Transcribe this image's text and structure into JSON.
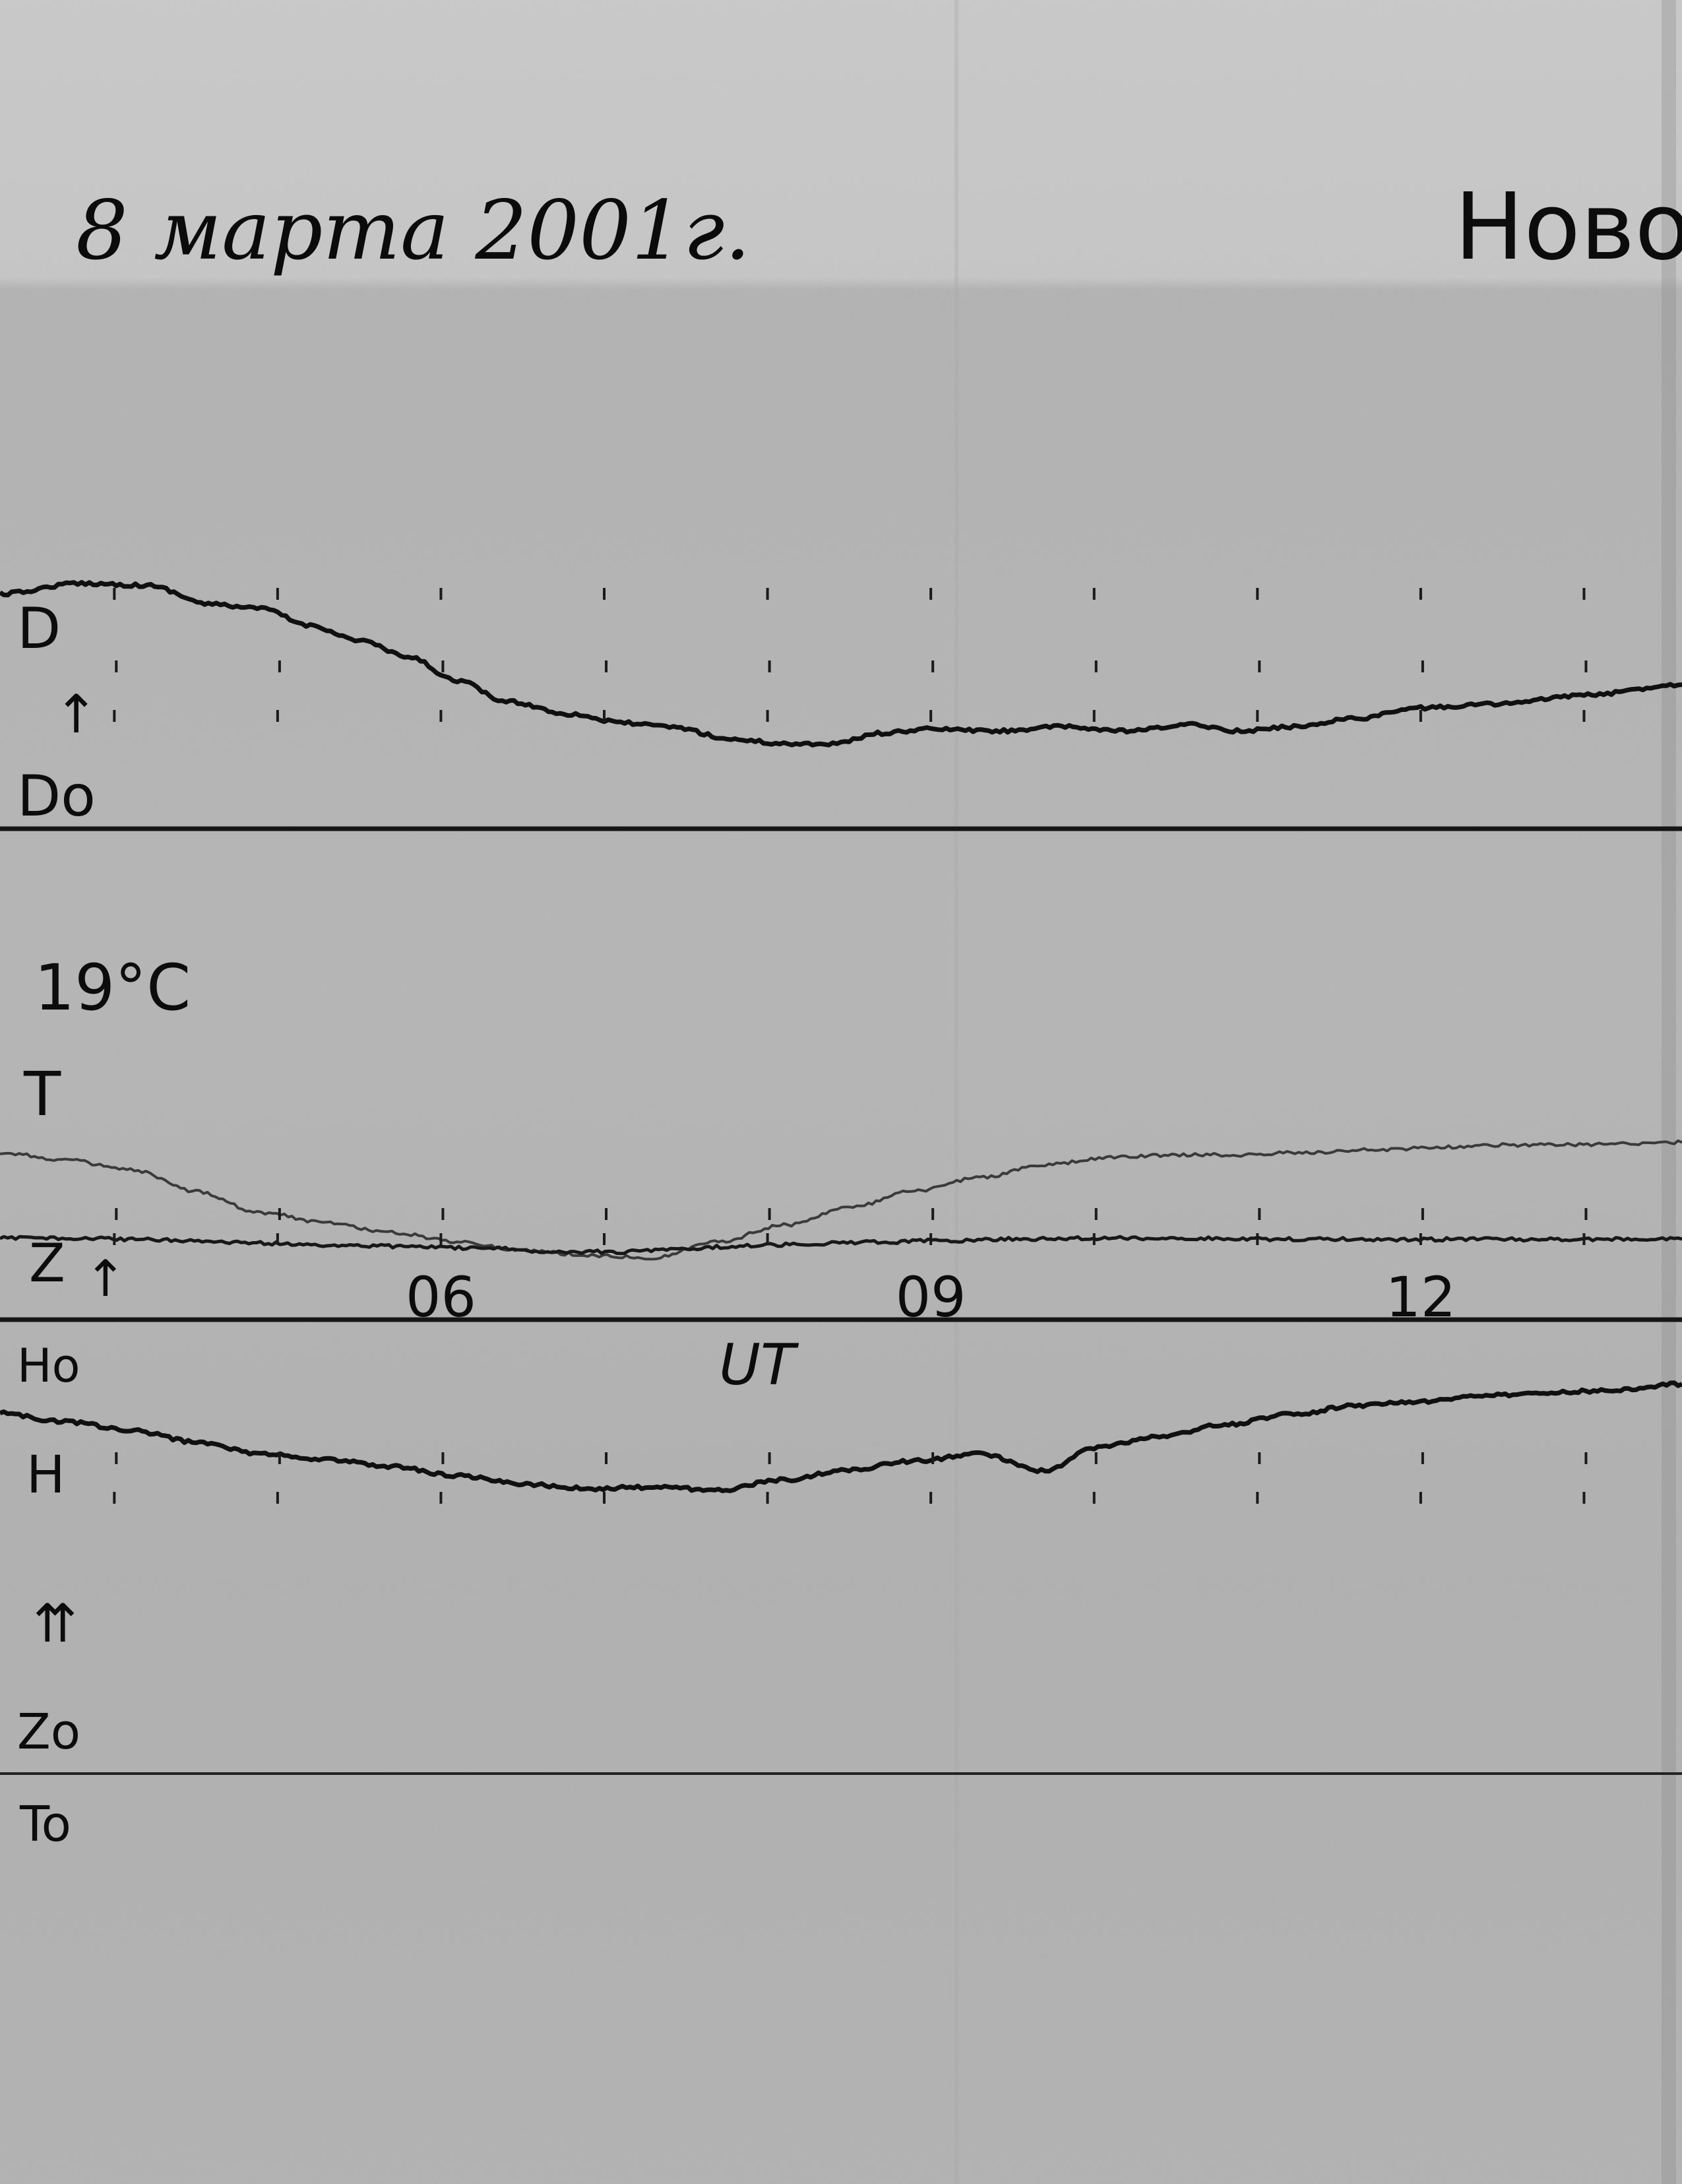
{
  "chart_data": {
    "type": "line",
    "title": "8 марта 2001г.",
    "station": "Ново",
    "xlabel": "UT",
    "x_ticks": [
      {
        "label": "06",
        "value": 6
      },
      {
        "label": "09",
        "value": 9
      },
      {
        "label": "12",
        "value": 12
      }
    ],
    "xlim": [
      3.3,
      13.6
    ],
    "hour_marks": [
      4,
      5,
      6,
      7,
      8,
      9,
      10,
      11,
      12,
      13
    ],
    "temperature_label": "19°C",
    "channel_labels": {
      "D": "D",
      "D0": "Do",
      "T": "T",
      "Z": "Z",
      "H0": "Ho",
      "H": "H",
      "Z0": "Zo",
      "T0": "To",
      "ut": "UT"
    },
    "baselines": [
      "Do",
      "Ho",
      "Zo / To"
    ],
    "series": [
      {
        "name": "D",
        "x": [
          3.3,
          3.8,
          4.2,
          4.6,
          4.9,
          5.2,
          5.5,
          5.8,
          6.1,
          6.4,
          6.8,
          7.1,
          7.4,
          7.8,
          8.1,
          8.4,
          8.7,
          9.0,
          9.4,
          9.8,
          10.2,
          10.6,
          10.9,
          11.2,
          11.6,
          12.0,
          12.5,
          13.0,
          13.6
        ],
        "y": [
          0.75,
          0.8,
          0.79,
          0.7,
          0.68,
          0.6,
          0.53,
          0.45,
          0.34,
          0.24,
          0.18,
          0.14,
          0.12,
          0.06,
          0.04,
          0.04,
          0.09,
          0.11,
          0.1,
          0.12,
          0.1,
          0.13,
          0.1,
          0.12,
          0.16,
          0.21,
          0.23,
          0.27,
          0.32
        ]
      },
      {
        "name": "T",
        "x": [
          3.3,
          3.7,
          4.1,
          4.5,
          4.9,
          5.3,
          5.7,
          6.1,
          6.5,
          6.9,
          7.3,
          7.7,
          8.1,
          8.5,
          8.9,
          9.3,
          9.7,
          10.1,
          10.5,
          10.9,
          11.3,
          11.7,
          12.1,
          12.5,
          12.9,
          13.6
        ],
        "y": [
          0.86,
          0.8,
          0.72,
          0.55,
          0.38,
          0.3,
          0.22,
          0.15,
          0.08,
          0.04,
          0.02,
          0.15,
          0.28,
          0.42,
          0.55,
          0.66,
          0.76,
          0.82,
          0.84,
          0.84,
          0.86,
          0.88,
          0.9,
          0.92,
          0.92,
          0.94
        ]
      },
      {
        "name": "Z",
        "x": [
          3.3,
          3.8,
          4.3,
          4.8,
          5.3,
          5.8,
          6.3,
          6.7,
          7.1,
          7.5,
          7.9,
          8.3,
          8.7,
          9.1,
          9.5,
          9.9,
          10.3,
          10.7,
          11.1,
          11.5,
          11.9,
          12.3,
          12.7,
          13.1,
          13.6
        ],
        "y": [
          0.44,
          0.42,
          0.38,
          0.3,
          0.23,
          0.2,
          0.14,
          0.06,
          0.05,
          0.15,
          0.22,
          0.28,
          0.32,
          0.36,
          0.4,
          0.42,
          0.43,
          0.42,
          0.4,
          0.4,
          0.39,
          0.4,
          0.39,
          0.4,
          0.4
        ]
      },
      {
        "name": "H",
        "x": [
          3.3,
          3.7,
          4.1,
          4.5,
          4.9,
          5.3,
          5.7,
          6.1,
          6.5,
          6.9,
          7.3,
          7.7,
          8.1,
          8.5,
          8.9,
          9.3,
          9.7,
          10.0,
          10.4,
          10.8,
          11.2,
          11.6,
          12.0,
          12.4,
          12.8,
          13.2,
          13.6
        ],
        "y": [
          0.72,
          0.66,
          0.6,
          0.52,
          0.44,
          0.4,
          0.35,
          0.29,
          0.23,
          0.2,
          0.21,
          0.19,
          0.26,
          0.33,
          0.39,
          0.44,
          0.32,
          0.48,
          0.56,
          0.64,
          0.71,
          0.77,
          0.8,
          0.84,
          0.86,
          0.88,
          0.92
        ]
      }
    ]
  }
}
